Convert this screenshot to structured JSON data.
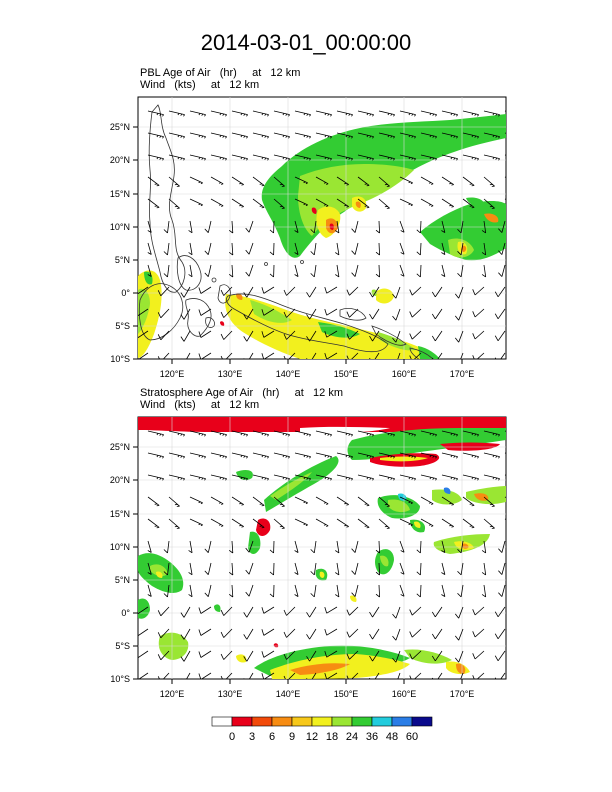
{
  "title": "2014-03-01_00:00:00",
  "panels": [
    {
      "label_line1": "PBL Age of Air   (hr)     at   12 km",
      "label_line2": "Wind   (kts)     at   12 km"
    },
    {
      "label_line1": "Stratosphere Age of Air   (hr)     at   12 km",
      "label_line2": "Wind   (kts)     at   12 km"
    }
  ],
  "lat_labels": [
    "25°N",
    "20°N",
    "15°N",
    "10°N",
    "5°N",
    "0°",
    "5°S",
    "10°S"
  ],
  "lon_labels": [
    "120°E",
    "130°E",
    "140°E",
    "150°E",
    "160°E",
    "170°E"
  ],
  "colorbar": {
    "labels": [
      "0",
      "3",
      "6",
      "9",
      "12",
      "18",
      "24",
      "36",
      "48",
      "60"
    ],
    "colors": [
      "#ffffff",
      "#e8001a",
      "#f24a0a",
      "#f78c12",
      "#f7c81a",
      "#f2f01e",
      "#9ae633",
      "#33cc33",
      "#22ccdd",
      "#2a7de6",
      "#0a0a8c"
    ]
  }
}
